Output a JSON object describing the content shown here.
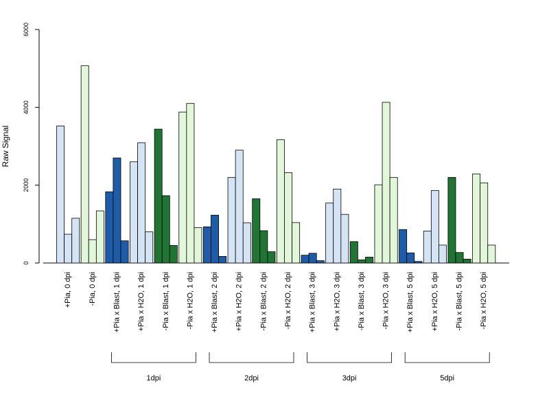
{
  "chart_data": {
    "type": "bar",
    "ylabel": "Raw Signal",
    "ylim": [
      0,
      6000
    ],
    "yticks": [
      "0",
      "2000",
      "4000",
      "6000"
    ],
    "grid": false,
    "legend": "none",
    "colors": {
      "light_blue": "#d5e4f5",
      "dark_blue": "#1f5ca8",
      "dark_green": "#207535",
      "light_green": "#e2f6da",
      "outline": "#000000"
    },
    "categories": [
      {
        "label": "+Pia, 0 dpi",
        "color": "light_blue",
        "values": [
          3520,
          740,
          1150
        ]
      },
      {
        "label": "-Pia, 0 dpi",
        "color": "light_green",
        "values": [
          5070,
          600,
          1340
        ]
      },
      {
        "label": "+Pia x Blast, 1 dpi",
        "color": "dark_blue",
        "values": [
          1830,
          2700,
          570
        ]
      },
      {
        "label": "+Pia x H2O, 1 dpi",
        "color": "light_blue",
        "values": [
          2600,
          3090,
          800
        ]
      },
      {
        "label": "-Pia x Blast, 1 dpi",
        "color": "dark_green",
        "values": [
          3440,
          1730,
          450
        ]
      },
      {
        "label": "-Pia x H2O, 1 dpi",
        "color": "light_green",
        "values": [
          3880,
          4100,
          910
        ]
      },
      {
        "label": "+Pia x Blast, 2 dpi",
        "color": "dark_blue",
        "values": [
          930,
          1230,
          170
        ]
      },
      {
        "label": "+Pia x H2O, 2 dpi",
        "color": "light_blue",
        "values": [
          2200,
          2900,
          1030
        ]
      },
      {
        "label": "-Pia x Blast, 2 dpi",
        "color": "dark_green",
        "values": [
          1650,
          830,
          290
        ]
      },
      {
        "label": "-Pia x H2O, 2 dpi",
        "color": "light_green",
        "values": [
          3170,
          2320,
          1040
        ]
      },
      {
        "label": "+Pia x Blast, 3 dpi",
        "color": "dark_blue",
        "values": [
          200,
          250,
          60
        ]
      },
      {
        "label": "+Pia x H2O, 3 dpi",
        "color": "light_blue",
        "values": [
          1540,
          1900,
          1250
        ]
      },
      {
        "label": "-Pia x Blast, 3 dpi",
        "color": "dark_green",
        "values": [
          550,
          80,
          150
        ]
      },
      {
        "label": "-Pia x H2O, 3 dpi",
        "color": "light_green",
        "values": [
          2010,
          4130,
          2200
        ]
      },
      {
        "label": "+Pia x Blast, 5 dpi",
        "color": "dark_blue",
        "values": [
          860,
          260,
          40
        ]
      },
      {
        "label": "+Pia x H2O, 5 dpi",
        "color": "light_blue",
        "values": [
          820,
          1860,
          460
        ]
      },
      {
        "label": "-Pia x Blast, 5 dpi",
        "color": "dark_green",
        "values": [
          2200,
          270,
          100
        ]
      },
      {
        "label": "-Pia x H2O, 5 dpi",
        "color": "light_green",
        "values": [
          2290,
          2060,
          460
        ]
      }
    ],
    "groups": [
      {
        "label": "1dpi",
        "from": 2,
        "to": 5
      },
      {
        "label": "2dpi",
        "from": 6,
        "to": 9
      },
      {
        "label": "3dpi",
        "from": 10,
        "to": 13
      },
      {
        "label": "5dpi",
        "from": 14,
        "to": 17
      }
    ]
  }
}
